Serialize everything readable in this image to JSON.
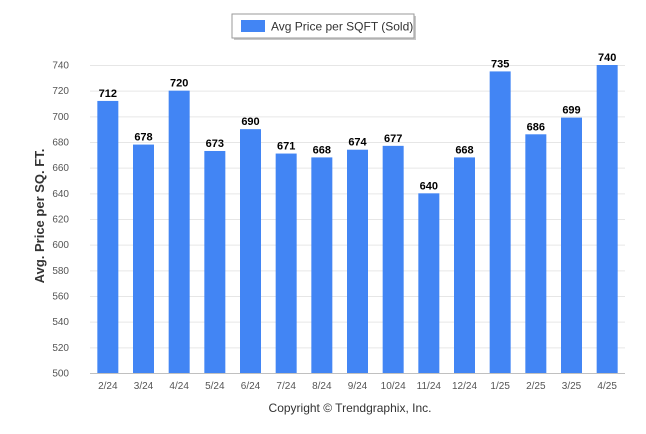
{
  "chart_data": {
    "type": "bar",
    "series": [
      {
        "name": "Avg Price per SQFT (Sold)",
        "color": "#4285f4",
        "values": [
          712,
          678,
          720,
          673,
          690,
          671,
          668,
          674,
          677,
          640,
          668,
          735,
          686,
          699,
          740
        ]
      }
    ],
    "categories": [
      "2/24",
      "3/24",
      "4/24",
      "5/24",
      "6/24",
      "7/24",
      "8/24",
      "9/24",
      "10/24",
      "11/24",
      "12/24",
      "1/25",
      "2/25",
      "3/25",
      "4/25"
    ],
    "data_labels": [
      "712",
      "678",
      "720",
      "673",
      "690",
      "671",
      "668",
      "674",
      "677",
      "640",
      "668",
      "735",
      "686",
      "699",
      "740"
    ],
    "ylabel": "Avg. Price per SQ. FT.",
    "ylim": [
      500,
      740
    ],
    "yticks": [
      500,
      520,
      540,
      560,
      580,
      600,
      620,
      640,
      660,
      680,
      700,
      720,
      740
    ],
    "legend_position": "top-center",
    "grid": true
  },
  "credit": "Copyright © Trendgraphix, Inc."
}
